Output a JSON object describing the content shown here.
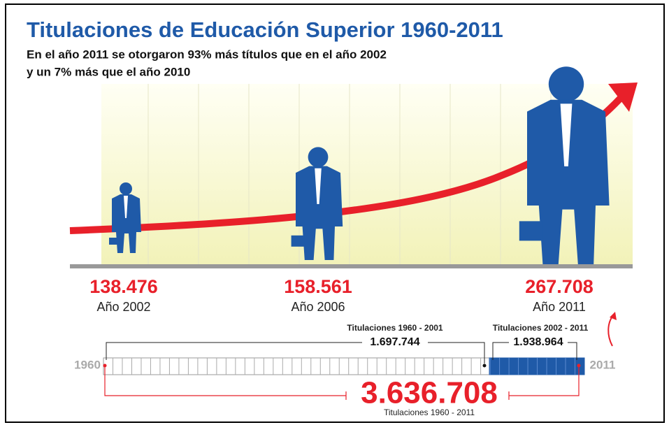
{
  "header": {
    "title": "Titulaciones de Educación Superior 1960-2011",
    "subtitle_lines": [
      "En el año 2011 se otorgaron 93% más títulos que en el año 2002",
      "y un 7% más que el año 2010"
    ]
  },
  "milestones": [
    {
      "value": "138.476",
      "label": "Año 2002"
    },
    {
      "value": "158.561",
      "label": "Año 2006"
    },
    {
      "value": "267.708",
      "label": "Año 2011"
    }
  ],
  "timeline": {
    "start": "1960",
    "end": "2011",
    "first_period": {
      "label": "Titulaciones 1960 - 2001",
      "value": "1.697.744"
    },
    "second_period": {
      "label": "Titulaciones 2002 - 2011",
      "value": "1.938.964"
    },
    "total": {
      "value": "3.636.708",
      "label": "Titulaciones 1960 - 2011"
    }
  }
}
